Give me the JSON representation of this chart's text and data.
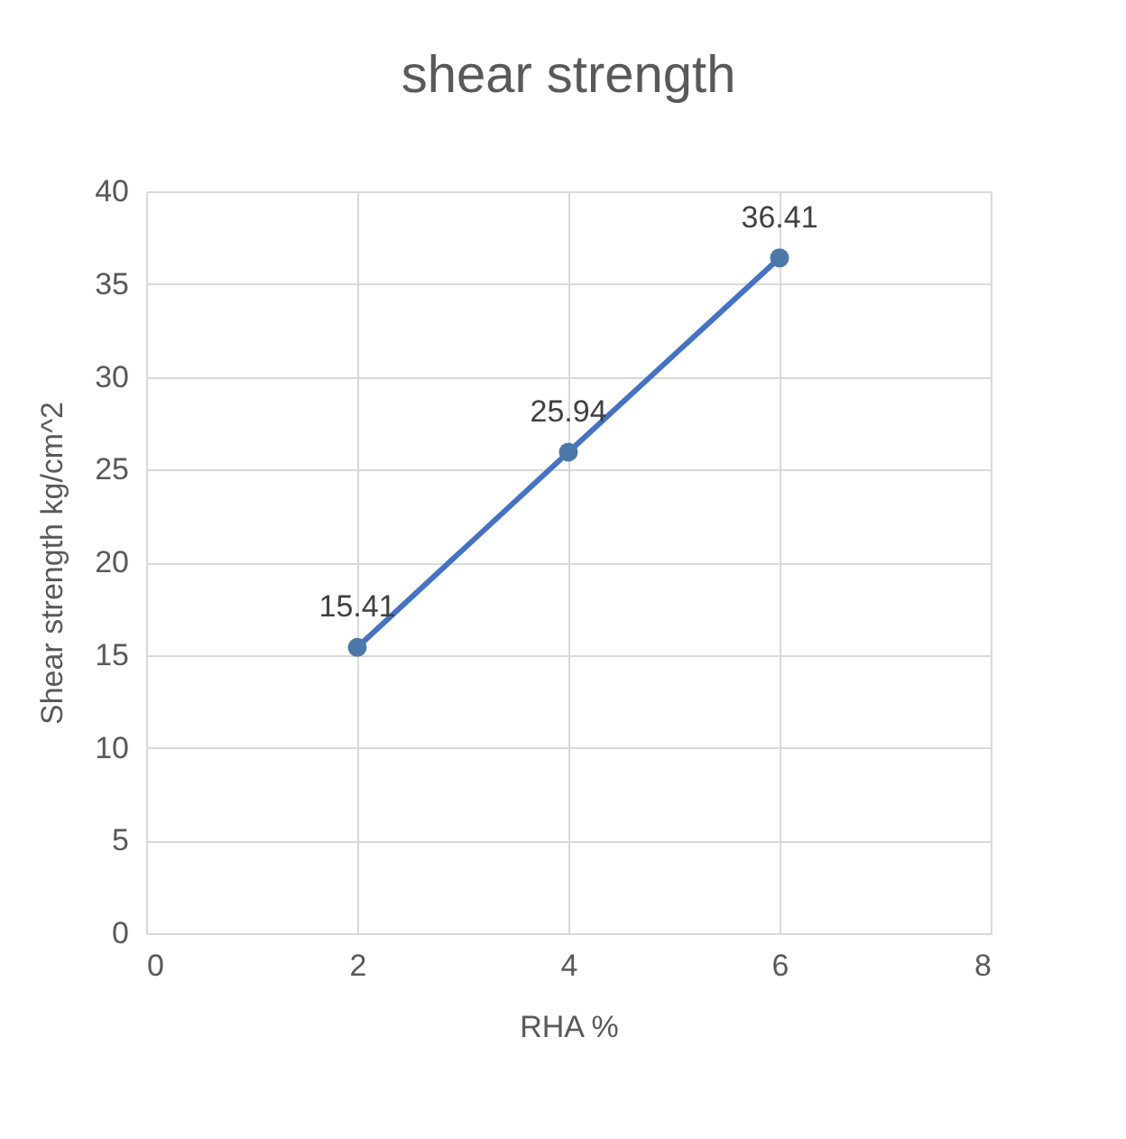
{
  "chart_data": {
    "type": "line",
    "title": "shear strength",
    "xlabel": "RHA %",
    "ylabel": "Shear strength kg/cm^2",
    "x": [
      2,
      4,
      6
    ],
    "series": [
      {
        "color": "#4472c4",
        "values": [
          15.41,
          25.94,
          36.41
        ]
      }
    ],
    "xlim": [
      0,
      8
    ],
    "xticks": [
      0,
      2,
      4,
      6,
      8
    ],
    "ylim": [
      0,
      40
    ],
    "yticks": [
      0,
      5,
      10,
      15,
      20,
      25,
      30,
      35,
      40
    ],
    "grid": true,
    "marker": "circle",
    "line_style": "solid",
    "data_labels": true
  }
}
